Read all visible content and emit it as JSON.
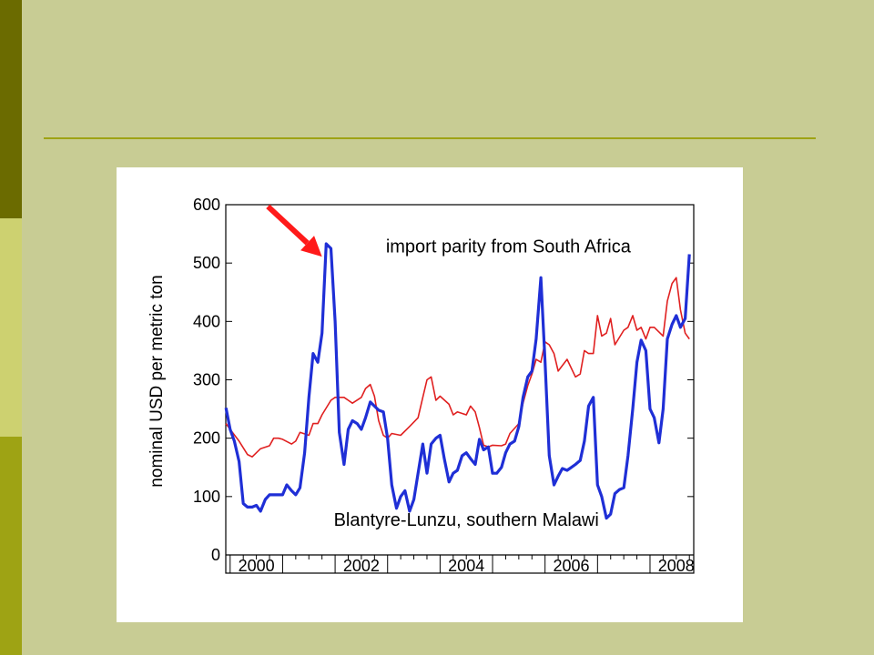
{
  "chart_data": {
    "type": "line",
    "title": "",
    "xlabel": "",
    "ylabel": "nominal USD per metric ton",
    "ylim": [
      0,
      600
    ],
    "xlim": [
      1999.917,
      2008.833
    ],
    "y_ticks": [
      0,
      100,
      200,
      300,
      400,
      500,
      600
    ],
    "x_tick_labels": [
      "2000",
      "2002",
      "2004",
      "2006",
      "2008"
    ],
    "x_tick_values": [
      2000,
      2002,
      2004,
      2006,
      2008
    ],
    "grid": false,
    "series": [
      {
        "name": "import parity from South Africa",
        "color": "#e02020",
        "points": [
          [
            1999.92,
            225
          ],
          [
            2000.0,
            215
          ],
          [
            2000.17,
            195
          ],
          [
            2000.33,
            172
          ],
          [
            2000.42,
            168
          ],
          [
            2000.5,
            175
          ],
          [
            2000.58,
            182
          ],
          [
            2000.75,
            187
          ],
          [
            2000.83,
            200
          ],
          [
            2000.92,
            200
          ],
          [
            2001.0,
            198
          ],
          [
            2001.17,
            190
          ],
          [
            2001.25,
            195
          ],
          [
            2001.33,
            210
          ],
          [
            2001.5,
            205
          ],
          [
            2001.58,
            225
          ],
          [
            2001.67,
            225
          ],
          [
            2001.75,
            240
          ],
          [
            2001.92,
            265
          ],
          [
            2002.0,
            270
          ],
          [
            2002.17,
            270
          ],
          [
            2002.33,
            260
          ],
          [
            2002.5,
            270
          ],
          [
            2002.58,
            285
          ],
          [
            2002.67,
            292
          ],
          [
            2002.75,
            272
          ],
          [
            2002.83,
            230
          ],
          [
            2002.92,
            205
          ],
          [
            2003.0,
            200
          ],
          [
            2003.08,
            208
          ],
          [
            2003.25,
            205
          ],
          [
            2003.42,
            220
          ],
          [
            2003.58,
            235
          ],
          [
            2003.67,
            270
          ],
          [
            2003.75,
            300
          ],
          [
            2003.83,
            305
          ],
          [
            2003.92,
            265
          ],
          [
            2004.0,
            272
          ],
          [
            2004.17,
            258
          ],
          [
            2004.25,
            240
          ],
          [
            2004.33,
            245
          ],
          [
            2004.5,
            240
          ],
          [
            2004.58,
            255
          ],
          [
            2004.67,
            245
          ],
          [
            2004.75,
            218
          ],
          [
            2004.83,
            188
          ],
          [
            2004.92,
            185
          ],
          [
            2005.0,
            188
          ],
          [
            2005.17,
            187
          ],
          [
            2005.25,
            190
          ],
          [
            2005.33,
            208
          ],
          [
            2005.5,
            225
          ],
          [
            2005.58,
            260
          ],
          [
            2005.67,
            290
          ],
          [
            2005.75,
            310
          ],
          [
            2005.83,
            335
          ],
          [
            2005.92,
            330
          ],
          [
            2006.0,
            365
          ],
          [
            2006.08,
            360
          ],
          [
            2006.17,
            345
          ],
          [
            2006.25,
            315
          ],
          [
            2006.42,
            335
          ],
          [
            2006.58,
            305
          ],
          [
            2006.67,
            310
          ],
          [
            2006.75,
            350
          ],
          [
            2006.83,
            345
          ],
          [
            2006.92,
            345
          ],
          [
            2007.0,
            410
          ],
          [
            2007.08,
            375
          ],
          [
            2007.17,
            380
          ],
          [
            2007.25,
            405
          ],
          [
            2007.33,
            360
          ],
          [
            2007.5,
            385
          ],
          [
            2007.58,
            390
          ],
          [
            2007.67,
            410
          ],
          [
            2007.75,
            385
          ],
          [
            2007.83,
            390
          ],
          [
            2007.92,
            370
          ],
          [
            2008.0,
            390
          ],
          [
            2008.08,
            390
          ],
          [
            2008.25,
            375
          ],
          [
            2008.33,
            435
          ],
          [
            2008.42,
            465
          ],
          [
            2008.5,
            475
          ],
          [
            2008.58,
            420
          ],
          [
            2008.67,
            380
          ],
          [
            2008.75,
            370
          ]
        ]
      },
      {
        "name": "Blantyre-Lunzu, southern Malawi",
        "color": "#1f2fd6",
        "points": [
          [
            1999.92,
            252
          ],
          [
            2000.0,
            215
          ],
          [
            2000.08,
            195
          ],
          [
            2000.17,
            160
          ],
          [
            2000.25,
            88
          ],
          [
            2000.33,
            82
          ],
          [
            2000.42,
            82
          ],
          [
            2000.5,
            85
          ],
          [
            2000.58,
            75
          ],
          [
            2000.67,
            95
          ],
          [
            2000.75,
            103
          ],
          [
            2000.83,
            103
          ],
          [
            2000.92,
            103
          ],
          [
            2001.0,
            103
          ],
          [
            2001.08,
            120
          ],
          [
            2001.17,
            110
          ],
          [
            2001.25,
            103
          ],
          [
            2001.33,
            115
          ],
          [
            2001.42,
            175
          ],
          [
            2001.5,
            270
          ],
          [
            2001.58,
            345
          ],
          [
            2001.67,
            330
          ],
          [
            2001.75,
            380
          ],
          [
            2001.83,
            533
          ],
          [
            2001.92,
            525
          ],
          [
            2002.0,
            400
          ],
          [
            2002.08,
            210
          ],
          [
            2002.17,
            155
          ],
          [
            2002.25,
            215
          ],
          [
            2002.33,
            230
          ],
          [
            2002.42,
            225
          ],
          [
            2002.5,
            215
          ],
          [
            2002.58,
            235
          ],
          [
            2002.67,
            262
          ],
          [
            2002.75,
            255
          ],
          [
            2002.83,
            248
          ],
          [
            2002.92,
            245
          ],
          [
            2003.0,
            200
          ],
          [
            2003.08,
            120
          ],
          [
            2003.17,
            80
          ],
          [
            2003.25,
            100
          ],
          [
            2003.33,
            110
          ],
          [
            2003.42,
            75
          ],
          [
            2003.5,
            95
          ],
          [
            2003.58,
            140
          ],
          [
            2003.67,
            190
          ],
          [
            2003.75,
            140
          ],
          [
            2003.83,
            190
          ],
          [
            2003.92,
            200
          ],
          [
            2004.0,
            205
          ],
          [
            2004.08,
            165
          ],
          [
            2004.17,
            125
          ],
          [
            2004.25,
            140
          ],
          [
            2004.33,
            145
          ],
          [
            2004.42,
            170
          ],
          [
            2004.5,
            175
          ],
          [
            2004.58,
            165
          ],
          [
            2004.67,
            155
          ],
          [
            2004.75,
            198
          ],
          [
            2004.83,
            180
          ],
          [
            2004.92,
            185
          ],
          [
            2005.0,
            140
          ],
          [
            2005.08,
            140
          ],
          [
            2005.17,
            150
          ],
          [
            2005.25,
            175
          ],
          [
            2005.33,
            190
          ],
          [
            2005.42,
            195
          ],
          [
            2005.5,
            220
          ],
          [
            2005.58,
            270
          ],
          [
            2005.67,
            305
          ],
          [
            2005.75,
            315
          ],
          [
            2005.83,
            370
          ],
          [
            2005.92,
            475
          ],
          [
            2006.0,
            330
          ],
          [
            2006.08,
            170
          ],
          [
            2006.17,
            120
          ],
          [
            2006.25,
            135
          ],
          [
            2006.33,
            148
          ],
          [
            2006.42,
            145
          ],
          [
            2006.5,
            150
          ],
          [
            2006.58,
            155
          ],
          [
            2006.67,
            162
          ],
          [
            2006.75,
            195
          ],
          [
            2006.83,
            255
          ],
          [
            2006.92,
            270
          ],
          [
            2007.0,
            120
          ],
          [
            2007.08,
            100
          ],
          [
            2007.17,
            63
          ],
          [
            2007.25,
            70
          ],
          [
            2007.33,
            105
          ],
          [
            2007.42,
            112
          ],
          [
            2007.5,
            115
          ],
          [
            2007.58,
            170
          ],
          [
            2007.67,
            250
          ],
          [
            2007.75,
            330
          ],
          [
            2007.83,
            368
          ],
          [
            2007.92,
            350
          ],
          [
            2008.0,
            250
          ],
          [
            2008.08,
            235
          ],
          [
            2008.17,
            192
          ],
          [
            2008.25,
            250
          ],
          [
            2008.33,
            370
          ],
          [
            2008.42,
            395
          ],
          [
            2008.5,
            410
          ],
          [
            2008.58,
            390
          ],
          [
            2008.67,
            405
          ],
          [
            2008.75,
            515
          ]
        ]
      }
    ],
    "annotations": [
      {
        "text": "import parity from South Africa",
        "x": 2005.3,
        "y": 518
      },
      {
        "text": "Blantyre-Lunzu, southern Malawi",
        "x": 2004.5,
        "y": 50
      }
    ],
    "arrow": {
      "color": "#ff1a1a",
      "from": [
        2000.72,
        597
      ],
      "to": [
        2001.75,
        511
      ]
    }
  }
}
